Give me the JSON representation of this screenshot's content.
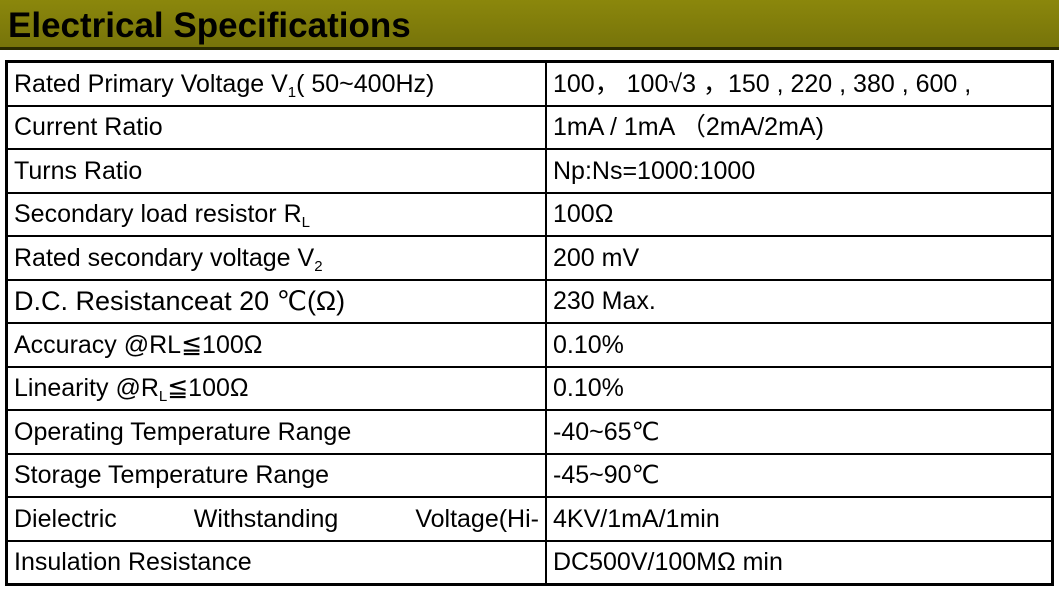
{
  "header": {
    "title": "Electrical Specifications"
  },
  "table": {
    "rows": [
      [
        {
          "text": "Rated Primary Voltage V",
          "sub": "1",
          "after": "( 50~400Hz)"
        },
        "100， 100√3 ，150 , 220 , 380 , 600 ,"
      ],
      [
        {
          "text": "Current Ratio"
        },
        "1mA / 1mA （2mA/2mA)"
      ],
      [
        {
          "text": "Turns Ratio"
        },
        "Np:Ns=1000:1000"
      ],
      [
        {
          "text": "Secondary load resistor R",
          "sub": "L"
        },
        "100Ω"
      ],
      [
        {
          "text": "Rated secondary voltage V",
          "sub": "2"
        },
        "200 mV"
      ],
      [
        {
          "text": "D.C. Resistanceat 20 ℃(Ω)"
        },
        "230 Max."
      ],
      [
        {
          "text": "Accuracy @RL≦100Ω"
        },
        "0.10%"
      ],
      [
        {
          "text": "Linearity @R",
          "sub": "L",
          "after": "≦100Ω"
        },
        "0.10%"
      ],
      [
        {
          "text": "Operating Temperature Range"
        },
        "-40~65℃"
      ],
      [
        {
          "text": "Storage Temperature Range"
        },
        "-45~90℃"
      ],
      [
        {
          "text": "Dielectric Withstanding Voltage(Hi-"
        },
        "4KV/1mA/1min"
      ],
      [
        {
          "text": "Insulation Resistance"
        },
        "DC500V/100MΩ min"
      ]
    ]
  }
}
